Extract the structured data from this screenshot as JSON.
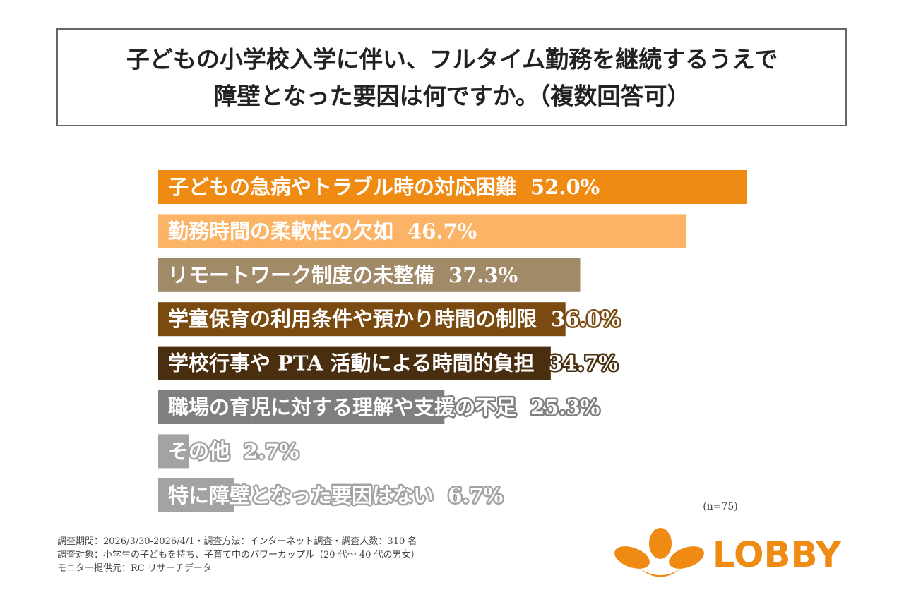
{
  "chart_data": {
    "type": "bar",
    "orientation": "horizontal",
    "title": [
      "子どもの小学校入学に伴い、フルタイム勤務を継続するうえで",
      "障壁となった要因は何ですか。（複数回答可）"
    ],
    "categories": [
      "子どもの急病やトラブル時の対応困難",
      "勤務時間の柔軟性の欠如",
      "リモートワーク制度の未整備",
      "学童保育の利用条件や預かり時間の制限",
      "学校行事や PTA 活動による時間的負担",
      "職場の育児に対する理解や支援の不足",
      "その他",
      "特に障壁となった要因はない"
    ],
    "values": [
      52.0,
      46.7,
      37.3,
      36.0,
      34.7,
      25.3,
      2.7,
      6.7
    ],
    "value_labels": [
      "52.0%",
      "46.7%",
      "37.3%",
      "36.0%",
      "34.7%",
      "25.3%",
      "2.7%",
      "6.7%"
    ],
    "colors": [
      "#ef8a12",
      "#fbb366",
      "#a08a68",
      "#7a4a10",
      "#4a2e10",
      "#7f7f7f",
      "#a3a3a3",
      "#a3a3a3"
    ],
    "note": "(n=75)",
    "footnotes": [
      "調査期間：2026/3/30-2026/4/1・調査方法：インターネット調査・調査人数：310 名",
      "調査対象：小学生の子どもを持ち、子育て中のパワーカップル（20 代〜 40 代の男女）",
      "モニター提供元：RC リサーチデータ"
    ],
    "logo": "LOBBY"
  }
}
